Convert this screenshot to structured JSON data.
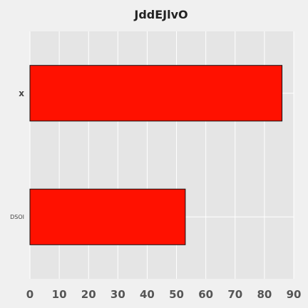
{
  "chart_data": {
    "type": "bar",
    "orientation": "horizontal",
    "title": "JddEJlvO",
    "xlabel": "",
    "ylabel": "",
    "categories": [
      "x",
      "DSOI"
    ],
    "values": [
      86,
      53
    ],
    "xlim": [
      0,
      90
    ],
    "xticks": [
      0,
      10,
      20,
      30,
      40,
      50,
      60,
      70,
      80,
      90
    ],
    "grid": true,
    "bar_color": "#ff1100",
    "plot_background": "#e5e5e5",
    "figure_background": "#f0f0f0",
    "grid_color": "#ffffff"
  }
}
